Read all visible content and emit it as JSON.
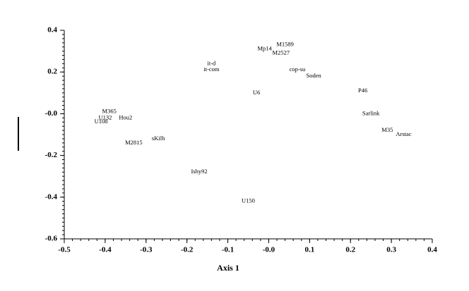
{
  "chart_data": {
    "type": "scatter",
    "x_label": "Axis 1",
    "point_labels": [
      "U132",
      "U108",
      "M365",
      "Hou2",
      "sKilh",
      "M2815",
      "Ishy92",
      "it-d",
      "it-com",
      "U6",
      "U150",
      "Mp14",
      "M1589",
      "M2527",
      "cop-su",
      "Soden",
      "P46",
      "Sarlink",
      "M35",
      "Arstac"
    ],
    "x": [
      -0.4,
      -0.41,
      -0.39,
      -0.35,
      -0.27,
      -0.33,
      -0.17,
      -0.14,
      -0.14,
      -0.03,
      -0.05,
      -0.01,
      0.04,
      0.03,
      0.07,
      0.11,
      0.23,
      0.25,
      0.29,
      0.33
    ],
    "values": [
      -0.02,
      -0.04,
      0.01,
      -0.02,
      -0.12,
      -0.14,
      -0.28,
      0.24,
      0.21,
      0.1,
      -0.42,
      0.31,
      0.33,
      0.29,
      0.21,
      0.18,
      0.11,
      0.0,
      -0.08,
      -0.1
    ],
    "xlim": [
      -0.5,
      0.4
    ],
    "xticks": [
      -0.5,
      -0.4,
      -0.3,
      -0.2,
      -0.1,
      {
        "value": 0,
        "label": "-0.0"
      },
      0.1,
      0.2,
      0.3,
      0.4
    ],
    "ylim": [
      -0.6,
      0.4
    ],
    "yticks": [
      0.4,
      0.2,
      {
        "value": 0,
        "label": "-0.0"
      },
      -0.2,
      -0.4,
      -0.6
    ]
  }
}
